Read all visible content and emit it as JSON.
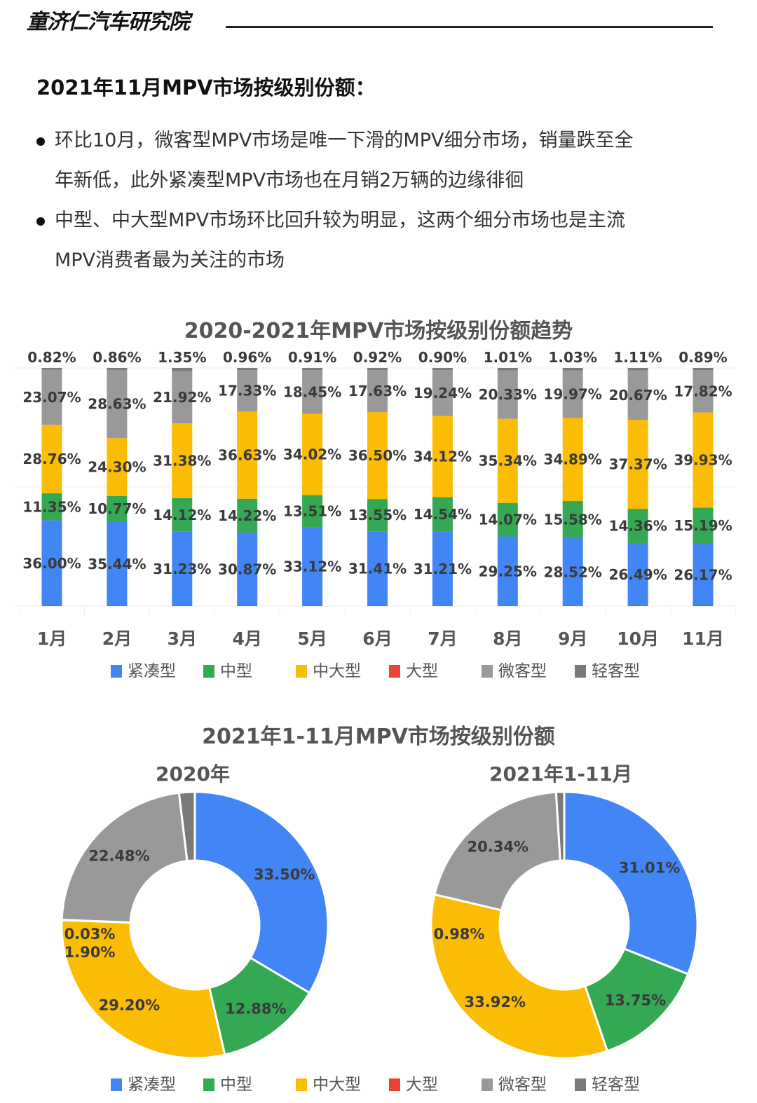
{
  "header": {
    "brand": "童济仁汽车研究院",
    "heading": "2021年11月MPV市场按级别份额："
  },
  "bullets": [
    {
      "lines": [
        "环比10月，微客型MPV市场是唯一下滑的MPV细分市场，销量跌至全",
        "年新低，此外紧凑型MPV市场也在月销2万辆的边缘徘徊"
      ]
    },
    {
      "lines": [
        "中型、中大型MPV市场环比回升较为明显，这两个细分市场也是主流",
        "MPV消费者最为关注的市场"
      ]
    }
  ],
  "legend": [
    {
      "label": "紧凑型",
      "color": "#4285F4"
    },
    {
      "label": "中型",
      "color": "#34A853"
    },
    {
      "label": "中大型",
      "color": "#FBBC04"
    },
    {
      "label": "大型",
      "color": "#EA4335"
    },
    {
      "label": "微客型",
      "color": "#999999"
    },
    {
      "label": "轻客型",
      "color": "#7A7A7A"
    }
  ],
  "chart_data": [
    {
      "type": "bar",
      "stacked": true,
      "percent_stacked": true,
      "title": "2020-2021年MPV市场按级别份额趋势",
      "categories": [
        "1月",
        "2月",
        "3月",
        "4月",
        "5月",
        "6月",
        "7月",
        "8月",
        "9月",
        "10月",
        "11月"
      ],
      "ylim": [
        0,
        100
      ],
      "grid": true,
      "legend_position": "bottom",
      "series": [
        {
          "name": "紧凑型",
          "color": "#4285F4",
          "values": [
            36.0,
            35.44,
            31.23,
            30.87,
            33.12,
            31.41,
            31.21,
            29.25,
            28.52,
            26.49,
            26.17
          ]
        },
        {
          "name": "中型",
          "color": "#34A853",
          "values": [
            11.35,
            10.77,
            14.12,
            14.22,
            13.51,
            13.55,
            14.54,
            14.07,
            15.58,
            14.36,
            15.19
          ]
        },
        {
          "name": "中大型",
          "color": "#FBBC04",
          "values": [
            28.76,
            24.3,
            31.38,
            36.63,
            34.02,
            36.5,
            34.12,
            35.34,
            34.89,
            37.37,
            39.93
          ]
        },
        {
          "name": "大型",
          "color": "#EA4335",
          "values": [
            0,
            0,
            0,
            0,
            0,
            0,
            0,
            0,
            0,
            0,
            0
          ]
        },
        {
          "name": "微客型",
          "color": "#999999",
          "values": [
            23.07,
            28.63,
            21.92,
            17.33,
            18.45,
            17.63,
            19.24,
            20.33,
            19.97,
            20.67,
            17.82
          ]
        },
        {
          "name": "轻客型",
          "color": "#7A7A7A",
          "values": [
            0.82,
            0.86,
            1.35,
            0.96,
            0.91,
            0.92,
            0.9,
            1.01,
            1.03,
            1.11,
            0.89
          ]
        }
      ]
    },
    {
      "type": "pie",
      "donut": true,
      "group_title": "2021年1-11月MPV市场按级别份额",
      "title": "2020年",
      "legend_position": "bottom",
      "slices": [
        {
          "name": "紧凑型",
          "value": 33.5,
          "color": "#4285F4"
        },
        {
          "name": "中型",
          "value": 12.88,
          "color": "#34A853"
        },
        {
          "name": "中大型",
          "value": 29.2,
          "color": "#FBBC04"
        },
        {
          "name": "大型",
          "value": 0.03,
          "color": "#EA4335"
        },
        {
          "name": "微客型",
          "value": 22.48,
          "color": "#999999"
        },
        {
          "name": "轻客型",
          "value": 1.9,
          "color": "#7A7A7A"
        }
      ]
    },
    {
      "type": "pie",
      "donut": true,
      "group_title": "2021年1-11月MPV市场按级别份额",
      "title": "2021年1-11月",
      "legend_position": "bottom",
      "slices": [
        {
          "name": "紧凑型",
          "value": 31.01,
          "color": "#4285F4"
        },
        {
          "name": "中型",
          "value": 13.75,
          "color": "#34A853"
        },
        {
          "name": "中大型",
          "value": 33.92,
          "color": "#FBBC04"
        },
        {
          "name": "大型",
          "value": 0,
          "color": "#EA4335"
        },
        {
          "name": "微客型",
          "value": 20.34,
          "color": "#999999"
        },
        {
          "name": "轻客型",
          "value": 0.98,
          "color": "#7A7A7A"
        }
      ]
    }
  ]
}
